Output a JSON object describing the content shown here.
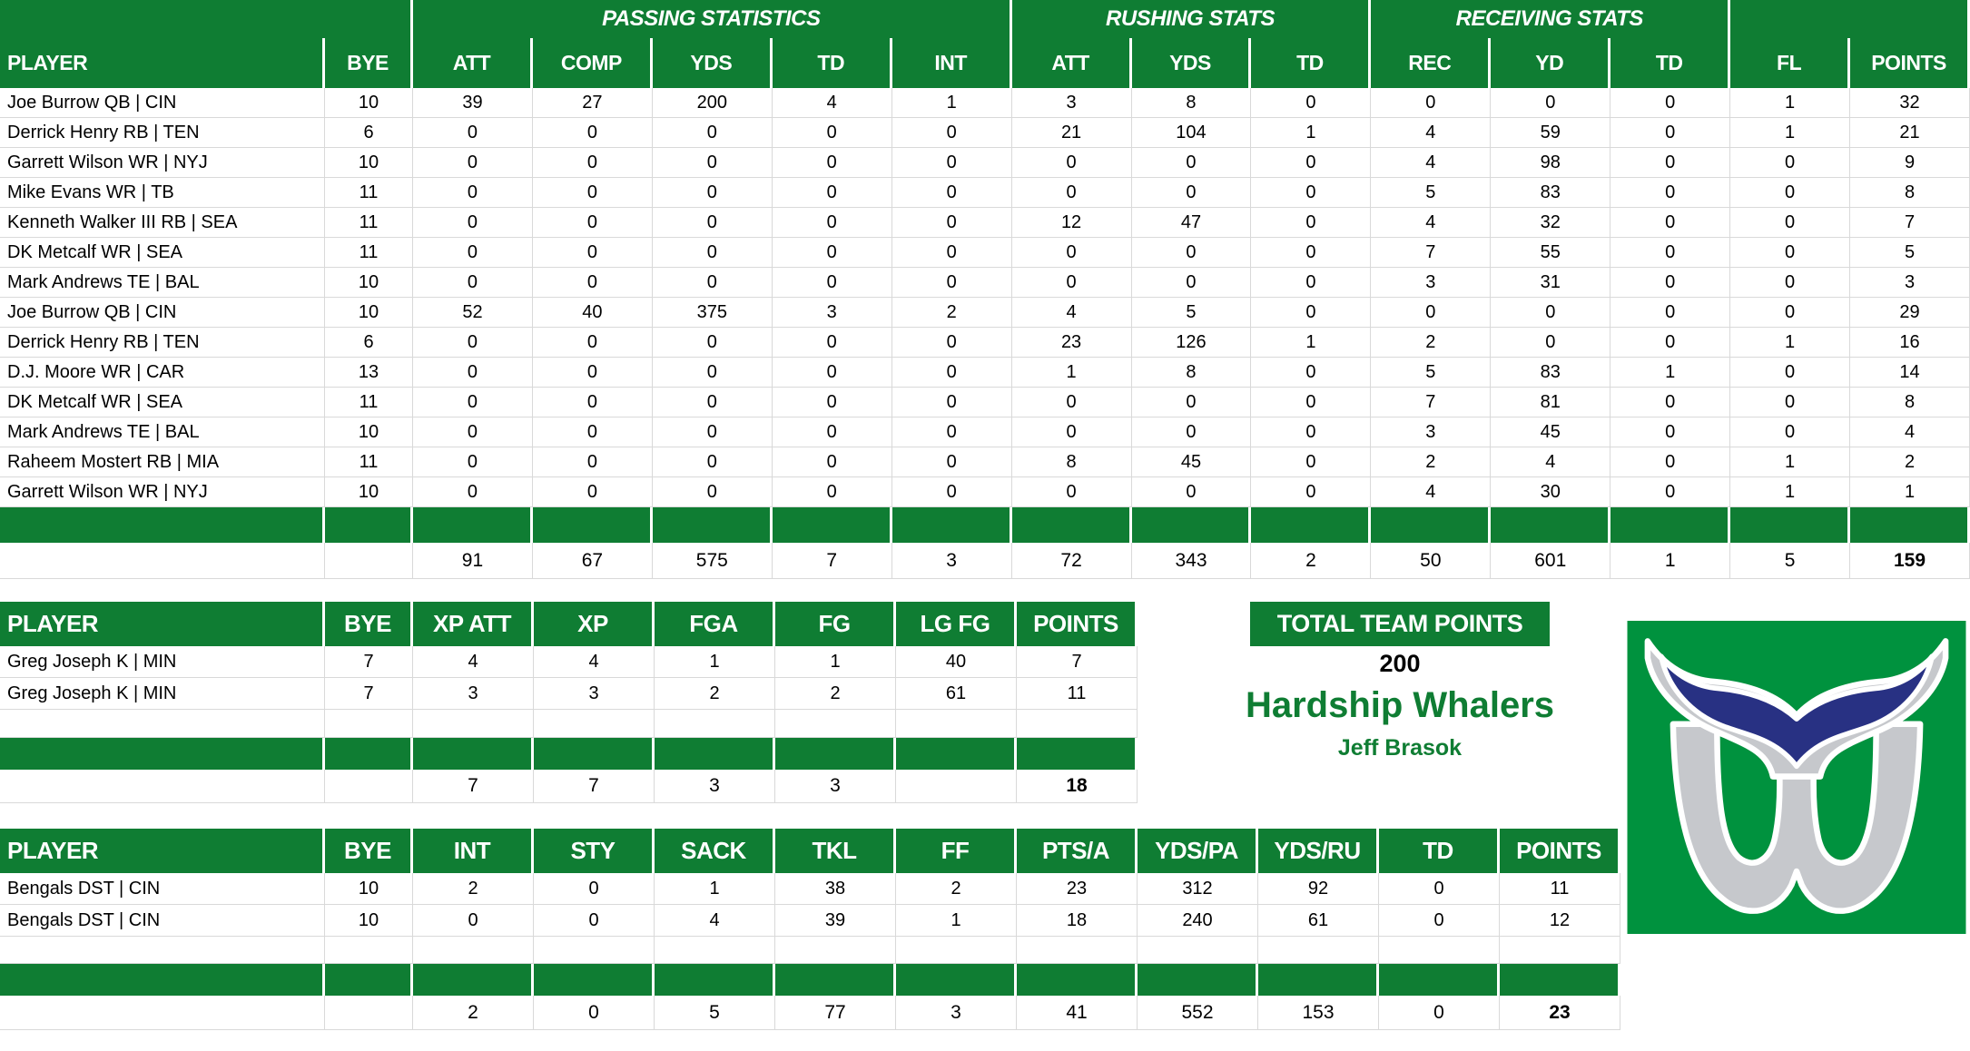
{
  "colors": {
    "table_green": "#0f7d33",
    "logo_green": "#00923e",
    "whale_navy": "#283183",
    "whale_gray": "#c6c8cc",
    "grid_line": "#d9d9d9",
    "header_text": "#ffffff"
  },
  "main_table": {
    "group_headers": [
      {
        "label": "",
        "span": 2
      },
      {
        "label": "PASSING STATISTICS",
        "span": 5
      },
      {
        "label": "RUSHING STATS",
        "span": 3
      },
      {
        "label": "RECEIVING STATS",
        "span": 3
      },
      {
        "label": "",
        "span": 2
      }
    ],
    "columns": [
      "PLAYER",
      "BYE",
      "ATT",
      "COMP",
      "YDS",
      "TD",
      "INT",
      "ATT",
      "YDS",
      "TD",
      "REC",
      "YD",
      "TD",
      "FL",
      "POINTS"
    ],
    "rows": [
      [
        "Joe Burrow QB | CIN",
        "10",
        "39",
        "27",
        "200",
        "4",
        "1",
        "3",
        "8",
        "0",
        "0",
        "0",
        "0",
        "1",
        "32"
      ],
      [
        "Derrick Henry RB | TEN",
        "6",
        "0",
        "0",
        "0",
        "0",
        "0",
        "21",
        "104",
        "1",
        "4",
        "59",
        "0",
        "1",
        "21"
      ],
      [
        "Garrett Wilson WR | NYJ",
        "10",
        "0",
        "0",
        "0",
        "0",
        "0",
        "0",
        "0",
        "0",
        "4",
        "98",
        "0",
        "0",
        "9"
      ],
      [
        "Mike Evans WR | TB",
        "11",
        "0",
        "0",
        "0",
        "0",
        "0",
        "0",
        "0",
        "0",
        "5",
        "83",
        "0",
        "0",
        "8"
      ],
      [
        "Kenneth Walker III RB | SEA",
        "11",
        "0",
        "0",
        "0",
        "0",
        "0",
        "12",
        "47",
        "0",
        "4",
        "32",
        "0",
        "0",
        "7"
      ],
      [
        "DK Metcalf WR | SEA",
        "11",
        "0",
        "0",
        "0",
        "0",
        "0",
        "0",
        "0",
        "0",
        "7",
        "55",
        "0",
        "0",
        "5"
      ],
      [
        "Mark Andrews TE | BAL",
        "10",
        "0",
        "0",
        "0",
        "0",
        "0",
        "0",
        "0",
        "0",
        "3",
        "31",
        "0",
        "0",
        "3"
      ],
      [
        "Joe Burrow QB | CIN",
        "10",
        "52",
        "40",
        "375",
        "3",
        "2",
        "4",
        "5",
        "0",
        "0",
        "0",
        "0",
        "0",
        "29"
      ],
      [
        "Derrick Henry RB | TEN",
        "6",
        "0",
        "0",
        "0",
        "0",
        "0",
        "23",
        "126",
        "1",
        "2",
        "0",
        "0",
        "1",
        "16"
      ],
      [
        "D.J. Moore WR | CAR",
        "13",
        "0",
        "0",
        "0",
        "0",
        "0",
        "1",
        "8",
        "0",
        "5",
        "83",
        "1",
        "0",
        "14"
      ],
      [
        "DK Metcalf WR | SEA",
        "11",
        "0",
        "0",
        "0",
        "0",
        "0",
        "0",
        "0",
        "0",
        "7",
        "81",
        "0",
        "0",
        "8"
      ],
      [
        "Mark Andrews TE | BAL",
        "10",
        "0",
        "0",
        "0",
        "0",
        "0",
        "0",
        "0",
        "0",
        "3",
        "45",
        "0",
        "0",
        "4"
      ],
      [
        "Raheem Mostert RB | MIA",
        "11",
        "0",
        "0",
        "0",
        "0",
        "0",
        "8",
        "45",
        "0",
        "2",
        "4",
        "0",
        "1",
        "2"
      ],
      [
        "Garrett Wilson WR | NYJ",
        "10",
        "0",
        "0",
        "0",
        "0",
        "0",
        "0",
        "0",
        "0",
        "4",
        "30",
        "0",
        "1",
        "1"
      ]
    ],
    "has_empty_row": false,
    "totals": [
      "",
      "",
      "91",
      "67",
      "575",
      "7",
      "3",
      "72",
      "343",
      "2",
      "50",
      "601",
      "1",
      "5",
      "159"
    ]
  },
  "kicker_table": {
    "columns": [
      "PLAYER",
      "BYE",
      "XP ATT",
      "XP",
      "FGA",
      "FG",
      "LG FG",
      "POINTS"
    ],
    "rows": [
      [
        "Greg Joseph K | MIN",
        "7",
        "4",
        "4",
        "1",
        "1",
        "40",
        "7"
      ],
      [
        "Greg Joseph K | MIN",
        "7",
        "3",
        "3",
        "2",
        "2",
        "61",
        "11"
      ]
    ],
    "has_empty_row": true,
    "totals": [
      "",
      "",
      "7",
      "7",
      "3",
      "3",
      "",
      "18"
    ]
  },
  "dst_table": {
    "columns": [
      "PLAYER",
      "BYE",
      "INT",
      "STY",
      "SACK",
      "TKL",
      "FF",
      "PTS/A",
      "YDS/PA",
      "YDS/RU",
      "TD",
      "POINTS"
    ],
    "rows": [
      [
        "Bengals DST | CIN",
        "10",
        "2",
        "0",
        "1",
        "38",
        "2",
        "23",
        "312",
        "92",
        "0",
        "11"
      ],
      [
        "Bengals DST | CIN",
        "10",
        "0",
        "0",
        "4",
        "39",
        "1",
        "18",
        "240",
        "61",
        "0",
        "12"
      ]
    ],
    "has_empty_row": true,
    "totals": [
      "",
      "",
      "2",
      "0",
      "5",
      "77",
      "3",
      "41",
      "552",
      "153",
      "0",
      "23"
    ]
  },
  "team_summary": {
    "header": "TOTAL TEAM POINTS",
    "total_points": "200",
    "team_name": "Hardship Whalers",
    "owner": "Jeff Brasok"
  },
  "logo": {
    "name": "hartford-whalers-logo"
  }
}
